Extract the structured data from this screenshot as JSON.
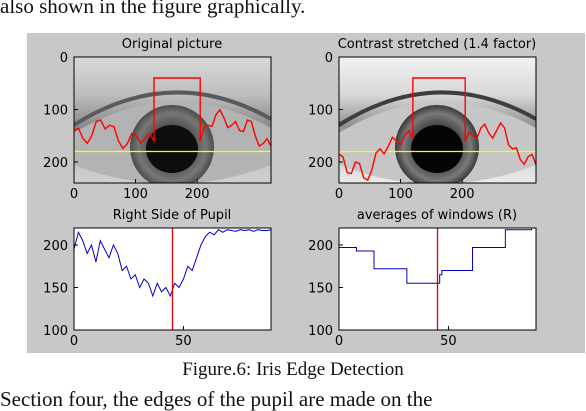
{
  "paper": {
    "top_text": "also shown in the figure graphically.",
    "caption": "Figure.6: Iris Edge Detection",
    "bottom_text": "Section four, the edges of the pupil are made on the"
  },
  "chart_data": [
    {
      "type": "image",
      "title": "Original picture",
      "xlim": [
        0,
        320
      ],
      "ylim": [
        0,
        240
      ],
      "xticks": [
        0,
        100,
        200
      ],
      "yticks": [
        0,
        100,
        200
      ],
      "tick_labels_x": [
        "0",
        "100",
        "200"
      ],
      "tick_labels_y": [
        "0",
        "100",
        "200"
      ],
      "overlay": {
        "yellow_line_y": 180,
        "red_box_x": [
          130,
          205
        ],
        "red_box_top_y": 40,
        "red_edge_y_left": [
          140,
          155,
          150,
          120,
          130,
          160,
          165,
          150,
          155,
          160
        ],
        "red_edge_y_right": [
          160,
          130,
          110,
          115,
          130,
          140,
          120,
          150,
          165,
          170
        ]
      },
      "colors": {
        "edge": "#ff0000",
        "center_line": "#ffff00"
      }
    },
    {
      "type": "image",
      "title": "Contrast stretched (1.4 factor)",
      "xlim": [
        0,
        320
      ],
      "ylim": [
        0,
        240
      ],
      "xticks": [
        0,
        100,
        200
      ],
      "yticks": [
        0,
        100,
        200
      ],
      "tick_labels_x": [
        "0",
        "100",
        "200"
      ],
      "tick_labels_y": [
        "0",
        "100",
        "200"
      ],
      "overlay": {
        "yellow_line_y": 180,
        "red_box_x": [
          120,
          205
        ],
        "red_box_top_y": 40,
        "red_edge_y_left": [
          185,
          220,
          200,
          230,
          215,
          175,
          170,
          160,
          150,
          155
        ],
        "red_edge_y_right": [
          160,
          150,
          135,
          145,
          140,
          135,
          175,
          195,
          190,
          205
        ]
      },
      "colors": {
        "edge": "#ff0000",
        "center_line": "#ffff00"
      }
    },
    {
      "type": "line",
      "title": "Right Side of Pupil",
      "xlim": [
        0,
        90
      ],
      "ylim": [
        100,
        220
      ],
      "xticks": [
        0,
        50
      ],
      "yticks": [
        100,
        150,
        200
      ],
      "tick_labels_x": [
        "0",
        "50"
      ],
      "tick_labels_y": [
        "100",
        "150",
        "200"
      ],
      "marker_x": 45,
      "series": [
        {
          "x": [
            0,
            2,
            4,
            6,
            8,
            10,
            12,
            14,
            16,
            18,
            20,
            22,
            24,
            26,
            28,
            30,
            32,
            34,
            36,
            38,
            40,
            42,
            44,
            46,
            48,
            50,
            52,
            54,
            56,
            58,
            60,
            62,
            64,
            66,
            68,
            70,
            72,
            74,
            76,
            78,
            80,
            82,
            84,
            86,
            88,
            90
          ],
          "values": [
            195,
            215,
            205,
            190,
            200,
            180,
            205,
            195,
            185,
            200,
            190,
            170,
            175,
            160,
            165,
            150,
            160,
            155,
            140,
            155,
            145,
            150,
            140,
            155,
            150,
            160,
            175,
            170,
            185,
            200,
            210,
            215,
            212,
            218,
            215,
            218,
            217,
            216,
            218,
            217,
            218,
            216,
            218,
            217,
            217,
            218
          ]
        }
      ],
      "colors": {
        "series": "#0000cc",
        "marker": "#dd0000"
      }
    },
    {
      "type": "line",
      "title": "averages of windows (R)",
      "xlim": [
        0,
        90
      ],
      "ylim": [
        100,
        220
      ],
      "xticks": [
        0,
        50
      ],
      "yticks": [
        100,
        150,
        200
      ],
      "tick_labels_x": [
        "0",
        "50"
      ],
      "tick_labels_y": [
        "100",
        "150",
        "200"
      ],
      "marker_x": 45,
      "series": [
        {
          "x": [
            0,
            8,
            8,
            16,
            16,
            31,
            31,
            46,
            46,
            47,
            47,
            61,
            61,
            76,
            76,
            88,
            88,
            90
          ],
          "values": [
            197,
            197,
            193,
            193,
            172,
            172,
            155,
            155,
            165,
            165,
            170,
            170,
            197,
            197,
            218,
            218,
            220,
            220
          ]
        }
      ],
      "colors": {
        "series": "#0000cc",
        "marker": "#dd0000"
      }
    }
  ]
}
